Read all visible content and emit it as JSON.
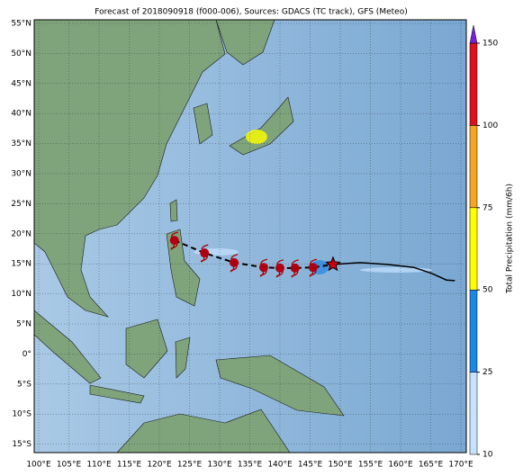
{
  "map": {
    "title": "Forecast of 2018090918 (f000-006), Sources: GDACS (TC track), GFS (Meteo)",
    "lon_labels": [
      "100°E",
      "105°E",
      "110°E",
      "115°E",
      "120°E",
      "125°E",
      "130°E",
      "135°E",
      "140°E",
      "145°E",
      "150°E",
      "155°E",
      "160°E",
      "165°E",
      "170°E"
    ],
    "lat_labels": [
      "55°N",
      "50°N",
      "45°N",
      "40°N",
      "35°N",
      "30°N",
      "25°N",
      "20°N",
      "15°N",
      "10°N",
      "5°N",
      "0°",
      "5°S",
      "10°S",
      "15°S"
    ],
    "track_past": {
      "lon": [
        122.5,
        127.5,
        132.4,
        137.3,
        140,
        142.5,
        145.5
      ],
      "lat": [
        18.9,
        16.8,
        15.2,
        14.4,
        14.3,
        14.3,
        14.4
      ]
    },
    "current": {
      "lon": 148.8,
      "lat": 14.9
    },
    "track_forecast": {
      "lon": [
        148.8,
        153.3,
        157.8,
        162.2,
        165.2,
        167.6,
        169
      ],
      "lat": [
        14.9,
        15.2,
        14.9,
        14.4,
        13.4,
        12.3,
        12.2
      ]
    }
  },
  "colorbar": {
    "label": "Total Precipitation (mm/6h)",
    "ticks": [
      10,
      25,
      50,
      75,
      100,
      150
    ],
    "colors": [
      "#c6e2ff",
      "#1e88e5",
      "#ffff00",
      "#f5a623",
      "#e0101a"
    ],
    "extend_color": "#7b1fd8"
  }
}
